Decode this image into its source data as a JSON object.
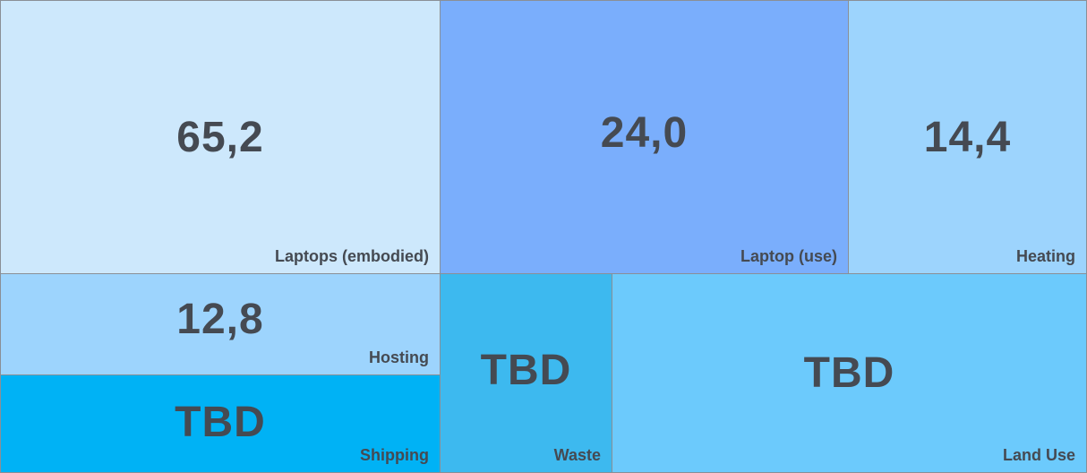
{
  "tiles": [
    {
      "value": "65,2",
      "label": "Laptops (embodied)"
    },
    {
      "value": "24,0",
      "label": "Laptop (use)"
    },
    {
      "value": "14,4",
      "label": "Heating"
    },
    {
      "value": "12,8",
      "label": "Hosting"
    },
    {
      "value": "TBD",
      "label": "Shipping"
    },
    {
      "value": "TBD",
      "label": "Waste"
    },
    {
      "value": "TBD",
      "label": "Land Use"
    }
  ]
}
